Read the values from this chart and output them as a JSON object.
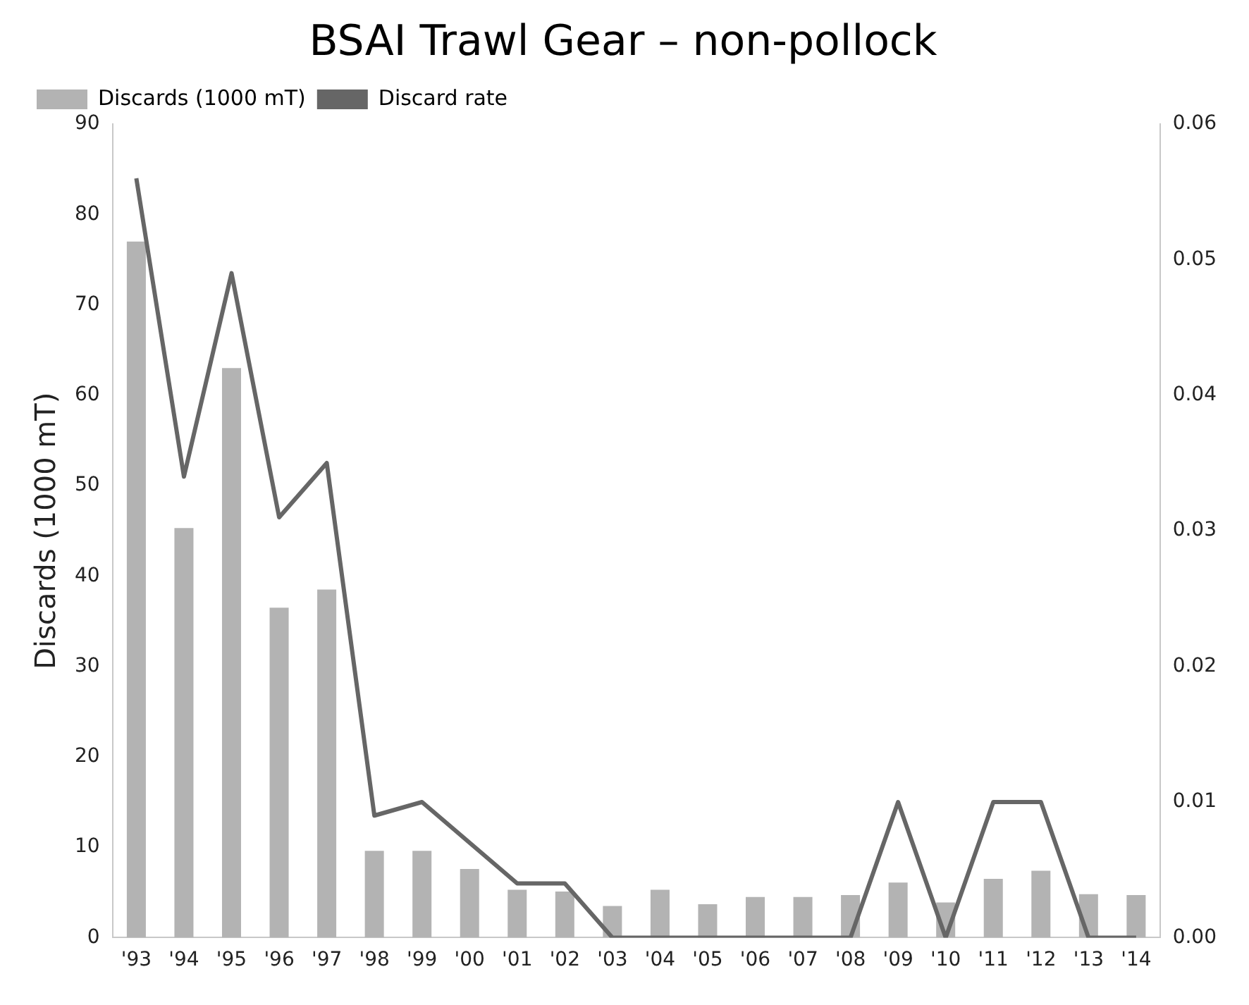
{
  "chart_data": {
    "type": "bar",
    "title": "BSAI Trawl Gear – non-pollock",
    "ylabel": "Discards (1000 mT)",
    "categories": [
      "'93",
      "'94",
      "'95",
      "'96",
      "'97",
      "'98",
      "'99",
      "'00",
      "'01",
      "'02",
      "'03",
      "'04",
      "'05",
      "'06",
      "'07",
      "'08",
      "'09",
      "'10",
      "'11",
      "'12",
      "'13",
      "'14"
    ],
    "series": [
      {
        "name": "Discards (1000 mT)",
        "color": "#b3b3b3",
        "values": [
          77,
          45.3,
          63,
          36.5,
          38.5,
          9.6,
          9.6,
          7.6,
          5.3,
          5.1,
          3.5,
          5.3,
          3.7,
          4.5,
          4.5,
          4.7,
          6.1,
          3.9,
          6.5,
          7.4,
          4.8,
          4.7
        ]
      },
      {
        "name": "Discard rate",
        "type": "line",
        "axis": "y2",
        "color": "#666666",
        "values": [
          0.056,
          0.034,
          0.049,
          0.031,
          0.035,
          0.009,
          0.01,
          0.007,
          0.004,
          0.004,
          0,
          0,
          0,
          0,
          0,
          0,
          0.01,
          0,
          0.01,
          0.01,
          0,
          0
        ]
      }
    ],
    "ylim": [
      0,
      90
    ],
    "yticks": [
      0,
      10,
      20,
      30,
      40,
      50,
      60,
      70,
      80,
      90
    ],
    "y2lim": [
      0,
      0.06
    ],
    "y2ticks": [
      {
        "value": 0,
        "label": "0.00"
      },
      {
        "value": 0.01,
        "label": "0.01"
      },
      {
        "value": 0.02,
        "label": "0.02"
      },
      {
        "value": 0.03,
        "label": "0.03"
      },
      {
        "value": 0.04,
        "label": "0.04"
      },
      {
        "value": 0.05,
        "label": "0.05"
      },
      {
        "value": 0.06,
        "label": "0.06"
      }
    ],
    "legend": "top left",
    "grid": false,
    "marker": "none",
    "line_style": "solid"
  }
}
